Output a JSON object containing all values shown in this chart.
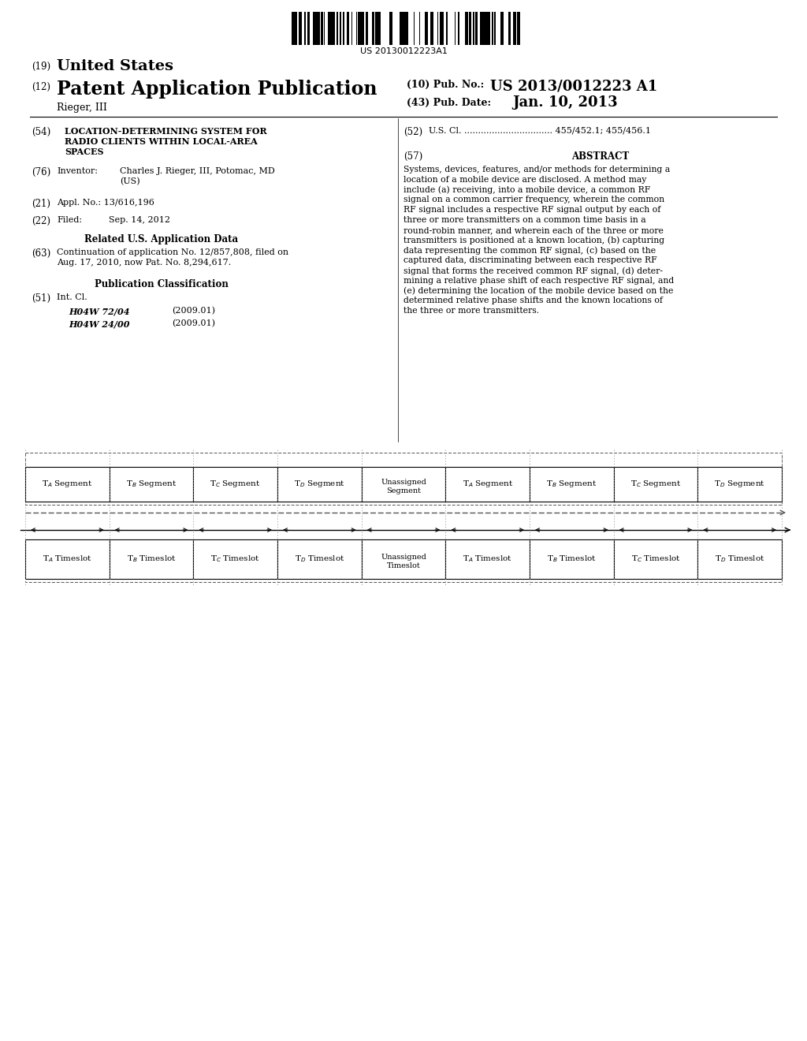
{
  "title": "US 20130012223 A1",
  "barcode_text": "US 20130012223A1",
  "patent_number": "US 2013/0012223 A1",
  "pub_date": "Jan. 10, 2013",
  "country": "United States",
  "pub_type": "Patent Application Publication",
  "inventor": "Rieger, III",
  "pub_no_label": "(10) Pub. No.:",
  "pub_date_label": "(43) Pub. Date:",
  "section_54_title_lines": [
    "LOCATION-DETERMINING SYSTEM FOR",
    "RADIO CLIENTS WITHIN LOCAL-AREA",
    "SPACES"
  ],
  "section_52_content": "U.S. Cl. ................................ 455/452.1; 455/456.1",
  "abstract_lines": [
    "Systems, devices, features, and/or methods for determining a",
    "location of a mobile device are disclosed. A method may",
    "include (a) receiving, into a mobile device, a common RF",
    "signal on a common carrier frequency, wherein the common",
    "RF signal includes a respective RF signal output by each of",
    "three or more transmitters on a common time basis in a",
    "round-robin manner, and wherein each of the three or more",
    "transmitters is positioned at a known location, (b) capturing",
    "data representing the common RF signal, (c) based on the",
    "captured data, discriminating between each respective RF",
    "signal that forms the received common RF signal, (d) deter-",
    "mining a relative phase shift of each respective RF signal, and",
    "(e) determining the location of the mobile device based on the",
    "determined relative phase shifts and the known locations of",
    "the three or more transmitters."
  ],
  "inventor_line1": "Charles J. Rieger, III, Potomac, MD",
  "inventor_line2": "(US)",
  "appl_no": "Appl. No.: 13/616,196",
  "filed_date": "Sep. 14, 2012",
  "continuation": "Continuation of application No. 12/857,808, filed on",
  "continuation2": "Aug. 17, 2010, now Pat. No. 8,294,617.",
  "intcl_class1": "H04W 72/04",
  "intcl_class1_year": "(2009.01)",
  "intcl_class2": "H04W 24/00",
  "intcl_class2_year": "(2009.01)",
  "seg_labels": [
    "A",
    "B",
    "C",
    "D",
    "U",
    "A",
    "B",
    "C",
    "D"
  ],
  "ts_labels": [
    "A",
    "B",
    "C",
    "D",
    "U",
    "A",
    "B",
    "C",
    "D"
  ],
  "bg_color": "#ffffff",
  "text_color": "#000000"
}
